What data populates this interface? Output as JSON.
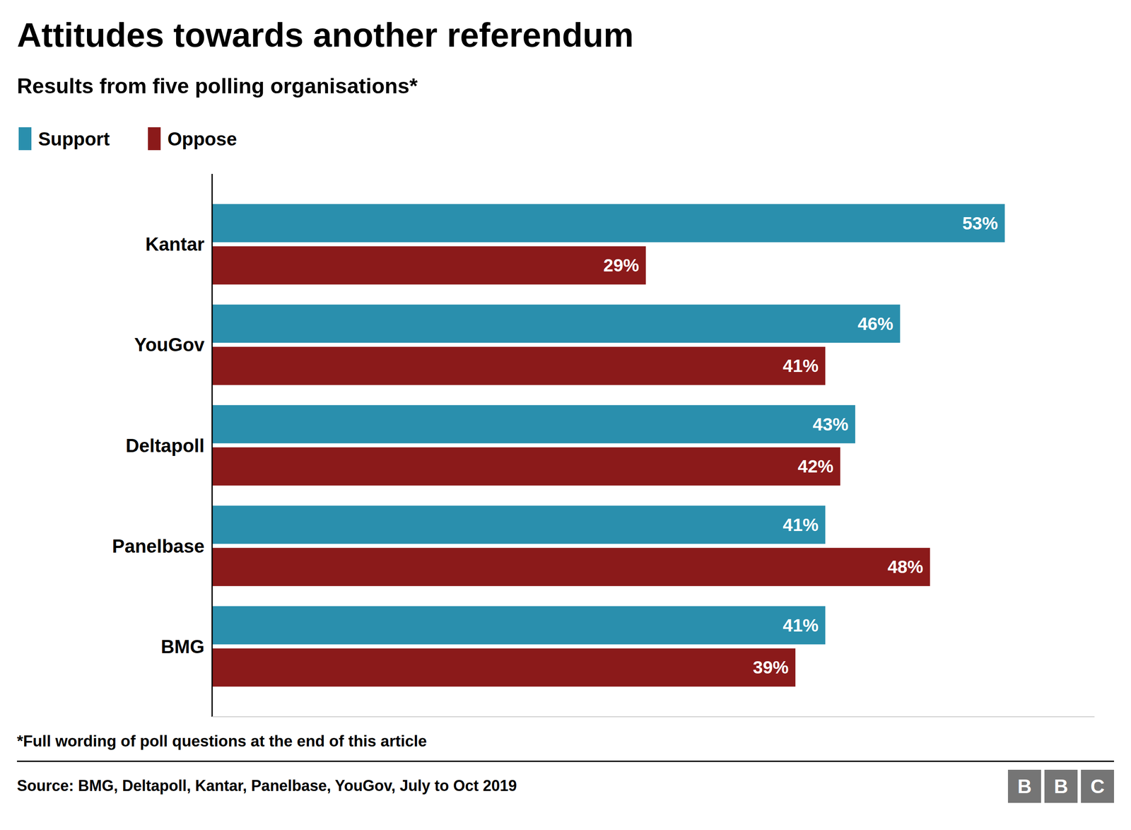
{
  "chart_data": {
    "type": "bar",
    "orientation": "horizontal",
    "title": "Attitudes towards another referendum",
    "subtitle": "Results from five polling organisations*",
    "footnote": "*Full wording of poll questions at the end of this article",
    "source": "Source: BMG, Deltapoll, Kantar, Panelbase, YouGov, July to Oct 2019",
    "annotations": [
      "BBC"
    ],
    "categories": [
      "Kantar",
      "YouGov",
      "Deltapoll",
      "Panelbase",
      "BMG"
    ],
    "series": [
      {
        "name": "Support",
        "color": "#2a8fad",
        "values": [
          53,
          46,
          43,
          41,
          41
        ],
        "value_labels": [
          "53%",
          "46%",
          "43%",
          "41%",
          "41%"
        ]
      },
      {
        "name": "Oppose",
        "color": "#8b1a1a",
        "values": [
          29,
          41,
          42,
          48,
          39
        ],
        "value_labels": [
          "29%",
          "41%",
          "42%",
          "48%",
          "39%"
        ]
      }
    ],
    "xlim": [
      0,
      59
    ],
    "grid": false,
    "legend": "top",
    "data_labels": true,
    "tick_labels": "y"
  }
}
